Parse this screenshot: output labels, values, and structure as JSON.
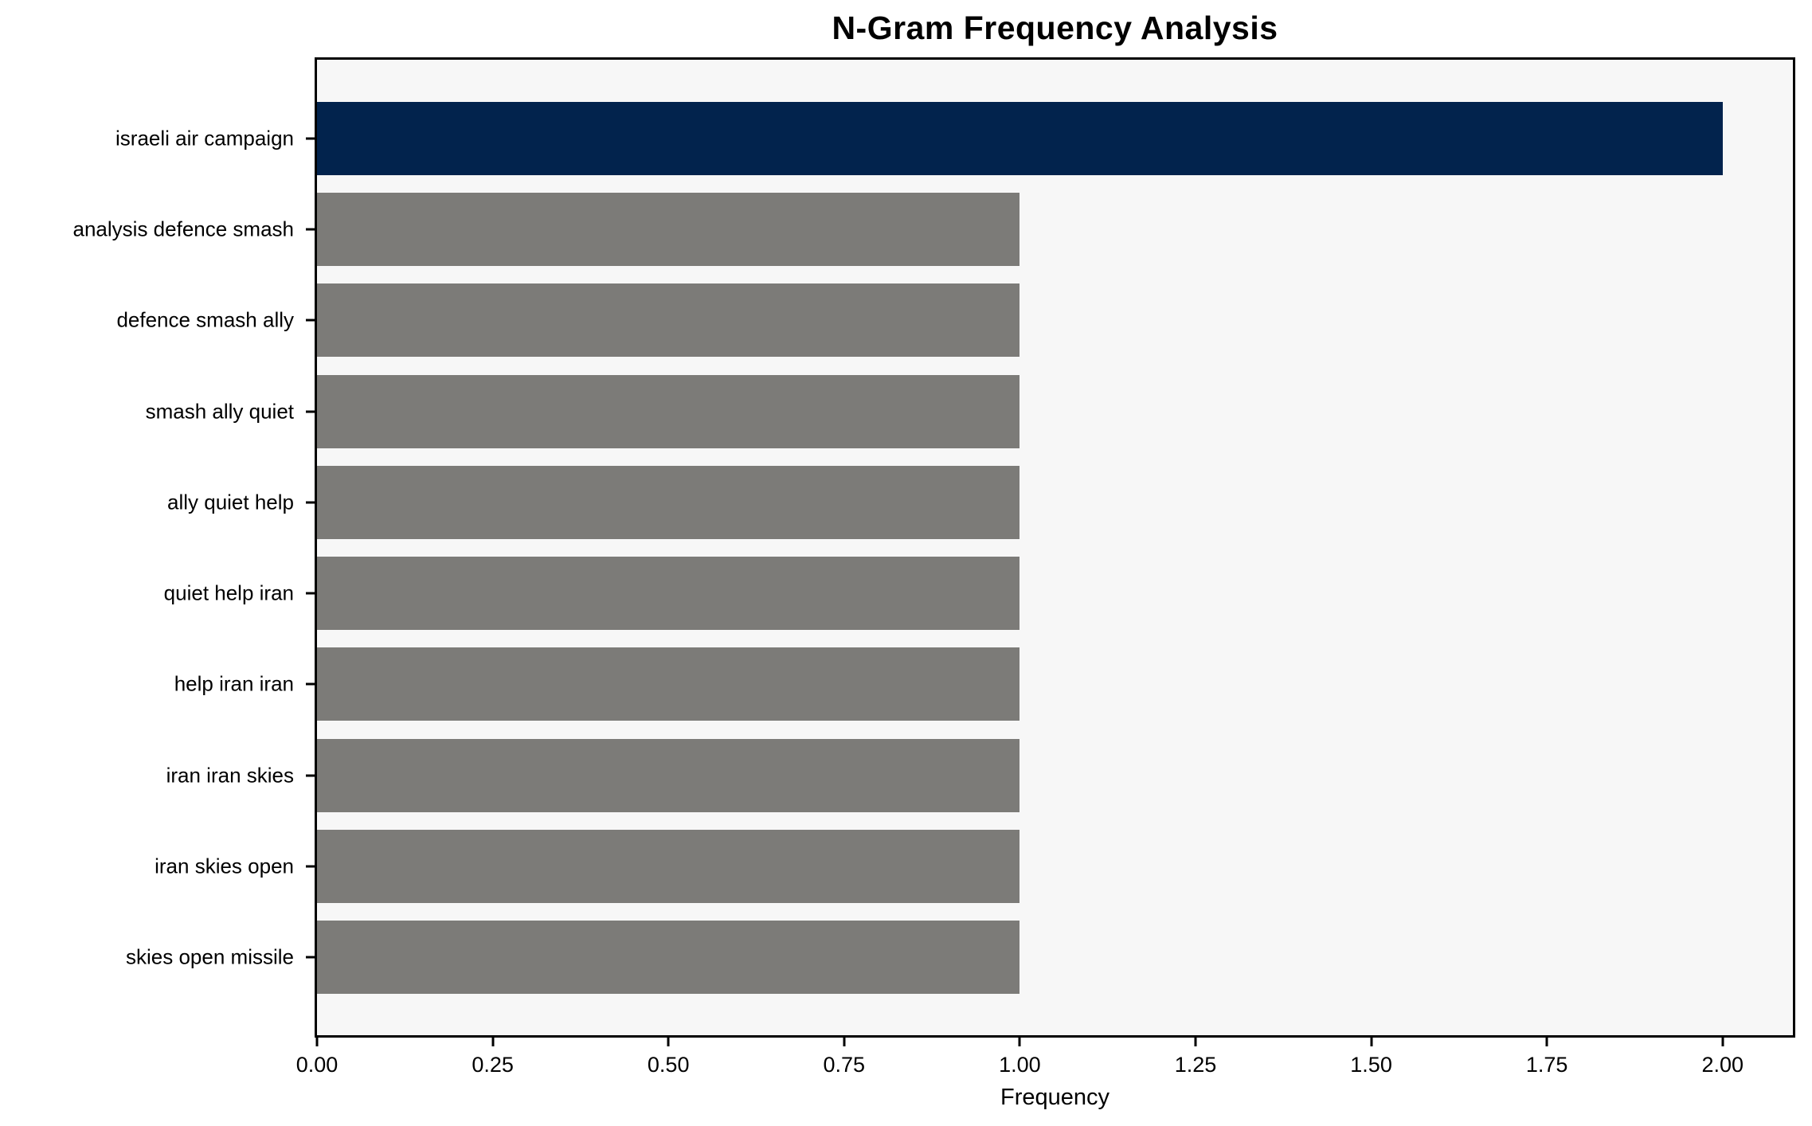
{
  "chart_data": {
    "type": "bar",
    "orientation": "horizontal",
    "title": "N-Gram Frequency Analysis",
    "xlabel": "Frequency",
    "ylabel": "",
    "categories": [
      "israeli air campaign",
      "analysis defence smash",
      "defence smash ally",
      "smash ally quiet",
      "ally quiet help",
      "quiet help iran",
      "help iran iran",
      "iran iran skies",
      "iran skies open",
      "skies open missile"
    ],
    "values": [
      2,
      1,
      1,
      1,
      1,
      1,
      1,
      1,
      1,
      1
    ],
    "xlim": [
      0,
      2.1
    ],
    "x_ticks": [
      "0.00",
      "0.25",
      "0.50",
      "0.75",
      "1.00",
      "1.25",
      "1.50",
      "1.75",
      "2.00"
    ],
    "x_tick_values": [
      0,
      0.25,
      0.5,
      0.75,
      1.0,
      1.25,
      1.5,
      1.75,
      2.0
    ],
    "bar_colors": [
      "#02234d",
      "#7c7b78",
      "#7c7b78",
      "#7c7b78",
      "#7c7b78",
      "#7c7b78",
      "#7c7b78",
      "#7c7b78",
      "#7c7b78",
      "#7c7b78"
    ],
    "colors": {
      "highlight_bar": "#02234d",
      "default_bar": "#7c7b78",
      "plot_background": "#f7f7f7",
      "figure_background": "#ffffff",
      "axis": "#000000"
    },
    "grid": false,
    "legend": false
  }
}
